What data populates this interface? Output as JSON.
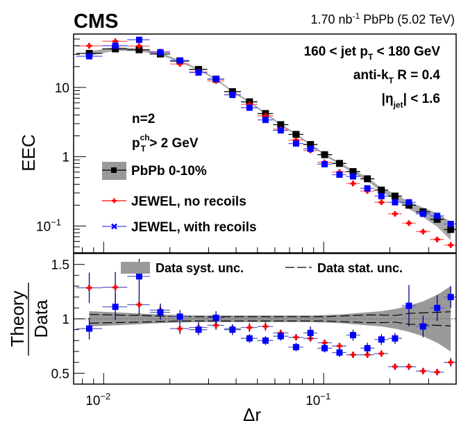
{
  "header": {
    "experiment": "CMS",
    "lumi": "1.70 nb",
    "lumi_sup": "-1",
    "lumi_rest": " PbPb (5.02 TeV)"
  },
  "colors": {
    "data": "#000000",
    "no_recoils": "#ff0000",
    "with_recoils": "#0000ff",
    "syst_band": "#999999",
    "ratio_err": "#00008b"
  },
  "chart_data": [
    {
      "type": "scatter",
      "panel": "top",
      "xscale": "log",
      "yscale": "log",
      "xlim": [
        0.0073,
        0.4
      ],
      "ylim": [
        0.041,
        59
      ],
      "xlabel": "",
      "ylabel": "EEC",
      "yticks": [
        {
          "v": 0.1,
          "base": "10",
          "exp": "−1"
        },
        {
          "v": 1,
          "base": "1",
          "exp": ""
        },
        {
          "v": 10,
          "base": "10",
          "exp": ""
        }
      ],
      "annotations": {
        "pt_range": [
          "160 < jet p",
          "T",
          " < 180 GeV"
        ],
        "algo": [
          "anti-k",
          "T",
          " R = 0.4"
        ],
        "eta": [
          "|η",
          "jet",
          "| < 1.6"
        ],
        "n": "n=2",
        "ptch": [
          "p",
          "ch",
          "T",
          " > 2 GeV"
        ]
      },
      "legend": [
        {
          "label": "PbPb 0-10%",
          "series": "data"
        },
        {
          "label": "JEWEL, no recoils",
          "series": "no_recoils"
        },
        {
          "label": "JEWEL, with recoils",
          "series": "with_recoils"
        }
      ],
      "x": [
        0.0086,
        0.0113,
        0.0145,
        0.0181,
        0.0222,
        0.027,
        0.0324,
        0.0385,
        0.046,
        0.0544,
        0.0638,
        0.0749,
        0.0871,
        0.101,
        0.118,
        0.136,
        0.158,
        0.183,
        0.211,
        0.244,
        0.283,
        0.328,
        0.378
      ],
      "series": [
        {
          "name": "PbPb 0-10%",
          "key": "data",
          "values": [
            31,
            36,
            35,
            30.4,
            24,
            18.2,
            13.2,
            8.7,
            6.2,
            4.2,
            2.9,
            2.1,
            1.5,
            1.07,
            0.8,
            0.61,
            0.48,
            0.33,
            0.27,
            0.2,
            0.16,
            0.125,
            0.089
          ]
        },
        {
          "name": "JEWEL, no recoils",
          "key": "no_recoils",
          "values": [
            39.8,
            46.4,
            39.6,
            32.8,
            21.8,
            16.7,
            12.4,
            7.9,
            5.7,
            3.9,
            2.5,
            1.74,
            1.23,
            0.83,
            0.6,
            0.41,
            0.32,
            0.22,
            0.15,
            0.11,
            0.083,
            0.064,
            0.053
          ]
        },
        {
          "name": "JEWEL, with recoils",
          "key": "with_recoils",
          "values": [
            28.2,
            40.0,
            48.7,
            32.2,
            24.5,
            16.4,
            13.3,
            7.8,
            5.1,
            3.4,
            2.4,
            1.55,
            1.3,
            0.78,
            0.55,
            0.52,
            0.35,
            0.27,
            0.22,
            0.22,
            0.15,
            0.14,
            0.107
          ]
        }
      ],
      "syst_rel": [
        0.07,
        0.06,
        0.05,
        0.04,
        0.035,
        0.03,
        0.03,
        0.03,
        0.03,
        0.03,
        0.03,
        0.03,
        0.03,
        0.035,
        0.04,
        0.05,
        0.06,
        0.07,
        0.09,
        0.12,
        0.16,
        0.22,
        0.3
      ]
    },
    {
      "type": "scatter",
      "panel": "ratio",
      "xscale": "log",
      "xlim": [
        0.0073,
        0.4
      ],
      "ylim": [
        0.4,
        1.6
      ],
      "xlabel": "Δr",
      "ylabel_num": "Theory",
      "ylabel_den": "Data",
      "yticks": [
        0.5,
        1,
        1.5
      ],
      "xticks": [
        {
          "v": 0.01,
          "base": "10",
          "exp": "−2"
        },
        {
          "v": 0.1,
          "base": "10",
          "exp": "−1"
        }
      ],
      "legend": [
        {
          "label": "Data syst. unc.",
          "kind": "band"
        },
        {
          "label": "Data stat. unc.",
          "kind": "dashed"
        }
      ],
      "x": [
        0.0086,
        0.0113,
        0.0145,
        0.0181,
        0.0222,
        0.027,
        0.0324,
        0.0385,
        0.046,
        0.0544,
        0.0638,
        0.0749,
        0.0871,
        0.101,
        0.118,
        0.136,
        0.158,
        0.183,
        0.211,
        0.244,
        0.283,
        0.328,
        0.378
      ],
      "series": [
        {
          "name": "JEWEL, no recoils",
          "key": "no_recoils",
          "values": [
            1.285,
            1.29,
            1.13,
            1.08,
            0.91,
            0.92,
            0.94,
            0.91,
            0.92,
            0.93,
            0.87,
            0.83,
            0.82,
            0.78,
            0.75,
            0.67,
            0.67,
            0.68,
            0.56,
            0.56,
            0.52,
            0.51,
            0.6
          ],
          "err": [
            0.14,
            0.14,
            0.1,
            0.06,
            0.05,
            0.05,
            0.04,
            0.04,
            0.04,
            0.04,
            0.03,
            0.03,
            0.03,
            0.03,
            0.03,
            0.03,
            0.03,
            0.03,
            0.03,
            0.03,
            0.03,
            0.03,
            0.04
          ]
        },
        {
          "name": "JEWEL, with recoils",
          "key": "with_recoils",
          "values": [
            0.91,
            1.11,
            1.39,
            1.06,
            1.02,
            0.9,
            1.01,
            0.9,
            0.82,
            0.8,
            0.84,
            0.74,
            0.87,
            0.73,
            0.69,
            0.85,
            0.73,
            0.81,
            0.82,
            1.12,
            0.93,
            1.1,
            1.2
          ],
          "err": [
            0.1,
            0.12,
            0.16,
            0.07,
            0.06,
            0.05,
            0.06,
            0.05,
            0.04,
            0.04,
            0.04,
            0.04,
            0.06,
            0.04,
            0.04,
            0.05,
            0.05,
            0.05,
            0.05,
            0.19,
            0.1,
            0.12,
            0.1
          ]
        }
      ],
      "stat_rel": [
        0.04,
        0.035,
        0.03,
        0.025,
        0.02,
        0.02,
        0.02,
        0.02,
        0.02,
        0.02,
        0.02,
        0.02,
        0.02,
        0.02,
        0.025,
        0.03,
        0.035,
        0.035,
        0.03,
        0.05,
        0.055,
        0.06,
        0.065
      ],
      "syst_rel": [
        0.07,
        0.06,
        0.05,
        0.04,
        0.035,
        0.03,
        0.03,
        0.03,
        0.03,
        0.03,
        0.03,
        0.03,
        0.03,
        0.035,
        0.04,
        0.05,
        0.06,
        0.07,
        0.09,
        0.12,
        0.16,
        0.22,
        0.3
      ]
    }
  ]
}
